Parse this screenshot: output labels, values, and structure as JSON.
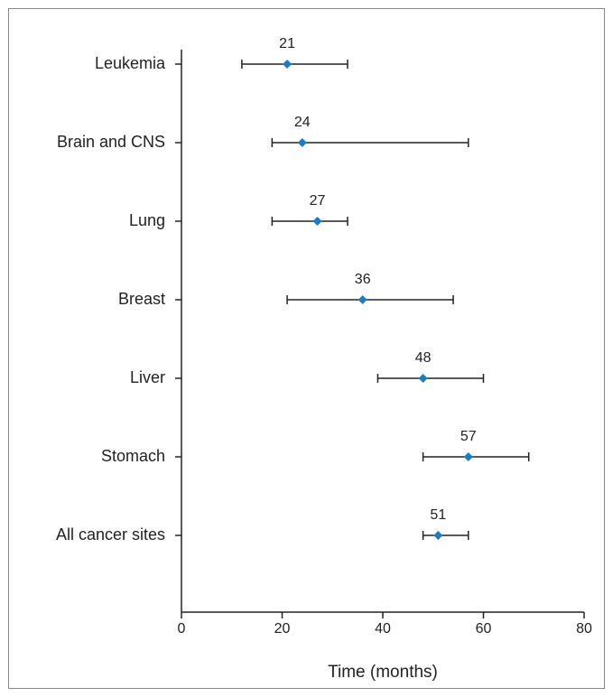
{
  "chart_data": {
    "type": "dot-interval",
    "x_label": "Time (months)",
    "categories": [
      "Leukemia",
      "Brain and CNS",
      "Lung",
      "Breast",
      "Liver",
      "Stomach",
      "All cancer sites"
    ],
    "values": [
      21,
      24,
      27,
      36,
      48,
      57,
      51
    ],
    "lower": [
      12,
      18,
      18,
      21,
      39,
      48,
      48
    ],
    "upper": [
      33,
      57,
      33,
      54,
      60,
      69,
      57
    ],
    "color": "#1a7dc4",
    "xlim": [
      0,
      80
    ],
    "xticks": [
      0,
      20,
      40,
      60,
      80
    ]
  }
}
